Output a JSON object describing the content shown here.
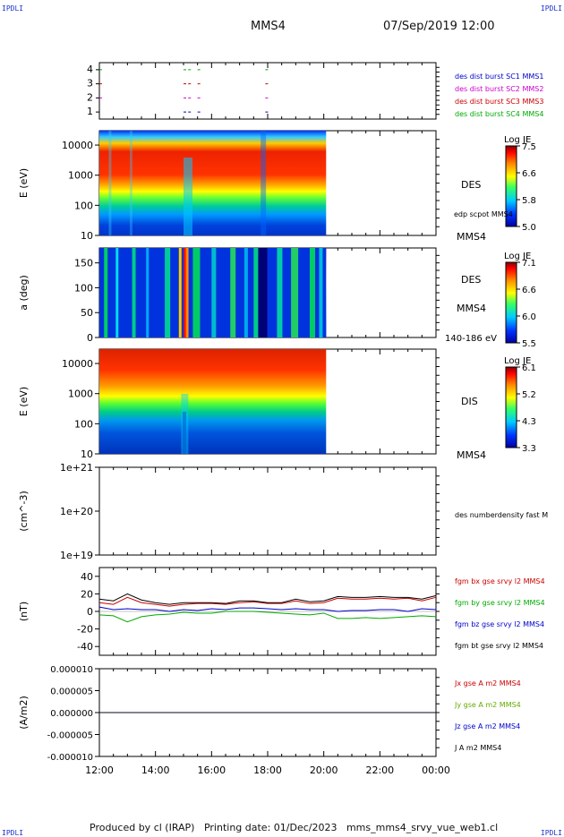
{
  "corners": {
    "tl": "IPDLI",
    "tr": "IPDLI",
    "bl": "IPDLI",
    "br": "IPDLI"
  },
  "header": {
    "spacecraft": "MMS4",
    "datetime": "07/Sep/2019 12:00"
  },
  "footer": {
    "text": "Produced by cl (IRAP)   Printing date: 01/Dec/2023   mms_mms4_srvy_vue_web1.cl"
  },
  "colors": {
    "mms1": "#0000cc",
    "mms2": "#cc00cc",
    "mms3": "#cc0000",
    "mms4": "#00aa00",
    "black": "#000000"
  },
  "chart_data": [
    {
      "type": "scatter",
      "title": "burst availability",
      "ylim": [
        0.5,
        4.5
      ],
      "yticks": [
        "1",
        "2",
        "3",
        "4"
      ],
      "xrange": [
        "12:00",
        "00:00"
      ],
      "series": [
        {
          "name": "des dist burst SC1 MMS1",
          "level": 1,
          "times": [
            "15:00",
            "15:10",
            "15:30",
            "17:55"
          ]
        },
        {
          "name": "des dist burst SC2 MMS2",
          "level": 2,
          "times": [
            "12:00",
            "15:00",
            "15:10",
            "15:30",
            "17:55"
          ]
        },
        {
          "name": "des dist burst SC3 MMS3",
          "level": 3,
          "times": [
            "12:00",
            "15:00",
            "15:10",
            "15:30",
            "17:55"
          ]
        },
        {
          "name": "des dist burst SC4 MMS4",
          "level": 4,
          "times": [
            "12:00",
            "15:00",
            "15:10",
            "15:30",
            "17:55"
          ]
        }
      ]
    },
    {
      "type": "heatmap",
      "instrument": "DES",
      "ylabel": "E (eV)",
      "ylim": [
        10,
        30000
      ],
      "scale": "log",
      "yticks": [
        "10",
        "100",
        "1000",
        "10000"
      ],
      "colorbar": {
        "label": "Log JE",
        "ticks": [
          "7.5",
          "6.6",
          "5.8",
          "5.0"
        ],
        "range": [
          5.0,
          7.6
        ]
      },
      "annotation": "edp scpot MMS4",
      "spacecraft": "MMS4",
      "data_end": "20:05"
    },
    {
      "type": "heatmap",
      "instrument": "DES",
      "ylabel": "a (deg)",
      "ylim": [
        0,
        180
      ],
      "yticks": [
        "0",
        "50",
        "100",
        "150"
      ],
      "colorbar": {
        "label": "Log JE",
        "ticks": [
          "7.1",
          "6.6",
          "6.0",
          "5.5"
        ],
        "range": [
          5.5,
          7.2
        ]
      },
      "spacecraft": "MMS4",
      "energy_band": "140-186 eV",
      "data_end": "20:05"
    },
    {
      "type": "heatmap",
      "instrument": "DIS",
      "ylabel": "E (eV)",
      "ylim": [
        10,
        30000
      ],
      "scale": "log",
      "yticks": [
        "10",
        "100",
        "1000",
        "10000"
      ],
      "colorbar": {
        "label": "Log JE",
        "ticks": [
          "6.1",
          "5.2",
          "4.3",
          "3.3"
        ],
        "range": [
          3.3,
          6.2
        ]
      },
      "spacecraft": "MMS4",
      "data_end": "20:05"
    },
    {
      "type": "line",
      "ylabel": "(cm^-3)",
      "scale": "log",
      "ylim": [
        1e+19,
        1e+21
      ],
      "yticks": [
        "1e+19",
        "1e+20",
        "1e+21"
      ],
      "series": [
        {
          "name": "des numberdensity fast M",
          "values": []
        }
      ]
    },
    {
      "type": "line",
      "ylabel": "(nT)",
      "ylim": [
        -50,
        50
      ],
      "yticks": [
        "-40",
        "-20",
        "0",
        "20",
        "40"
      ],
      "x": [
        "12:00",
        "12:30",
        "13:00",
        "13:30",
        "14:00",
        "14:30",
        "15:00",
        "15:30",
        "16:00",
        "16:30",
        "17:00",
        "17:30",
        "18:00",
        "18:30",
        "19:00",
        "19:30",
        "20:00",
        "20:30",
        "21:00",
        "21:30",
        "22:00",
        "22:30",
        "23:00",
        "23:30",
        "00:00"
      ],
      "series": [
        {
          "name": "fgm bx gse srvy l2 MMS4",
          "values": [
            10,
            8,
            16,
            10,
            8,
            6,
            8,
            9,
            9,
            8,
            10,
            11,
            9,
            9,
            12,
            9,
            10,
            15,
            14,
            14,
            15,
            14,
            15,
            12,
            16
          ]
        },
        {
          "name": "fgm by gse srvy l2 MMS4",
          "values": [
            -4,
            -5,
            -12,
            -6,
            -4,
            -3,
            -1,
            -2,
            -2,
            0,
            0,
            0,
            -1,
            -2,
            -3,
            -4,
            -2,
            -8,
            -8,
            -7,
            -8,
            -7,
            -6,
            -5,
            -6
          ]
        },
        {
          "name": "fgm bz gse srvy l2 MMS4",
          "values": [
            5,
            2,
            3,
            2,
            2,
            0,
            2,
            1,
            3,
            2,
            4,
            4,
            3,
            2,
            3,
            2,
            2,
            0,
            1,
            1,
            2,
            2,
            0,
            3,
            2
          ]
        },
        {
          "name": "fgm bt gse srvy l2 MMS4",
          "values": [
            14,
            12,
            20,
            13,
            10,
            8,
            10,
            10,
            10,
            9,
            12,
            12,
            10,
            10,
            14,
            11,
            12,
            17,
            16,
            16,
            17,
            16,
            16,
            14,
            18
          ]
        }
      ]
    },
    {
      "type": "line",
      "ylabel": "(A/m2)",
      "ylim": [
        -1e-05,
        1e-05
      ],
      "yticks": [
        "-0.000010",
        "-0.000005",
        "0.000000",
        "0.000005",
        "0.000010"
      ],
      "xticks": [
        "12:00",
        "14:00",
        "16:00",
        "18:00",
        "20:00",
        "22:00",
        "00:00"
      ],
      "series": [
        {
          "name": "Jx gse A m2 MMS4",
          "values": [
            0,
            0,
            0,
            0,
            0,
            0,
            0
          ]
        },
        {
          "name": "Jy gse A m2 MMS4",
          "values": [
            0,
            0,
            0,
            0,
            0,
            0,
            0
          ]
        },
        {
          "name": "Jz gse A m2 MMS4",
          "values": [
            0,
            0,
            0,
            0,
            0,
            0,
            0
          ]
        },
        {
          "name": "J A m2 MMS4",
          "values": [
            0,
            0,
            0,
            0,
            0,
            0,
            0
          ]
        }
      ]
    }
  ]
}
